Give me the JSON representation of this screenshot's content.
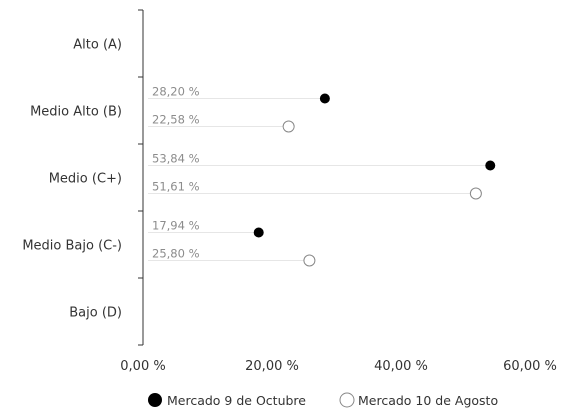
{
  "chart_data": {
    "type": "scatter",
    "orientation": "horizontal",
    "categories": [
      "Alto (A)",
      "Medio Alto (B)",
      "Medio (C+)",
      "Medio Bajo (C-)",
      "Bajo (D)"
    ],
    "series": [
      {
        "name": "Mercado 9 de Octubre",
        "marker": "filled-circle",
        "color": "#000000",
        "values": [
          null,
          28.2,
          53.84,
          17.94,
          null
        ],
        "labels": [
          null,
          "28,20 %",
          "53,84 %",
          "17,94 %",
          null
        ]
      },
      {
        "name": "Mercado 10 de Agosto",
        "marker": "open-circle",
        "color": "#888888",
        "values": [
          null,
          22.58,
          51.61,
          25.8,
          null
        ],
        "labels": [
          null,
          "22,58 %",
          "51,61 %",
          "25,80 %",
          null
        ]
      }
    ],
    "x_ticks": [
      0,
      20,
      40,
      60
    ],
    "x_tick_labels": [
      "0,00 %",
      "20,00 %",
      "40,00 %",
      "60,00 %"
    ],
    "xlim": [
      0,
      60
    ],
    "title": "",
    "xlabel": "",
    "ylabel": "",
    "grid": false,
    "legend_position": "bottom"
  }
}
